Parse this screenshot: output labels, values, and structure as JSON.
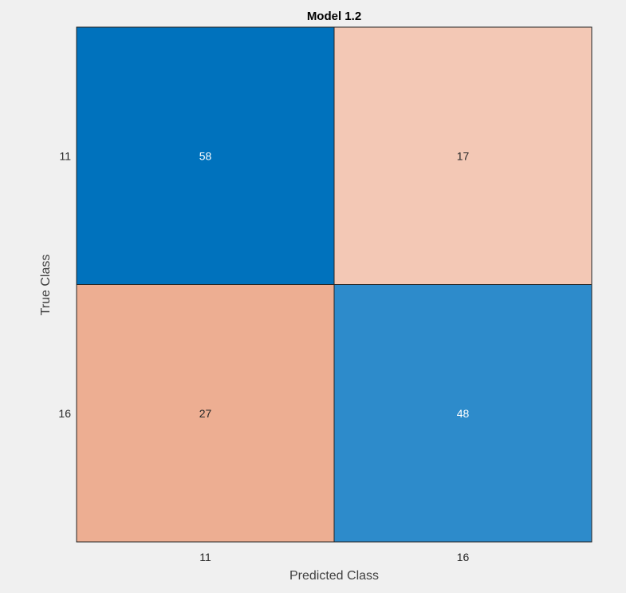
{
  "chart_data": {
    "type": "heatmap",
    "title": "Model 1.2",
    "xlabel": "Predicted Class",
    "ylabel": "True Class",
    "x_categories": [
      "11",
      "16"
    ],
    "y_categories": [
      "11",
      "16"
    ],
    "values": [
      [
        58,
        17
      ],
      [
        27,
        48
      ]
    ],
    "diagonal_colors": {
      "58": "#0072bd",
      "48": "#2d8bcb"
    },
    "off_diagonal_colors": {
      "17": "#f3c8b5",
      "27": "#edae92"
    },
    "cell_text_colors": {
      "diagonal": "#ffffff",
      "off_diagonal": "#262626"
    },
    "grid_color": "#262626",
    "background_color": "#f0f0f0"
  }
}
